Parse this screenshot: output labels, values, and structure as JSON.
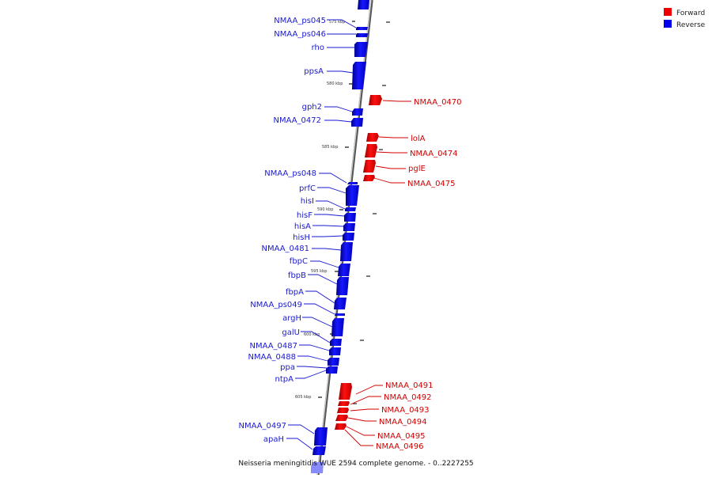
{
  "caption": "Neisseria meningitidis WUE 2594 complete genome. - 0..2227255",
  "legend": [
    {
      "label": "Forward",
      "color": "#ee0000"
    },
    {
      "label": "Reverse",
      "color": "#0000ee"
    }
  ],
  "colors": {
    "forward": "#ee0000",
    "reverse": "#0000ee",
    "forward_label": "#d00000",
    "reverse_label": "#1a1ad0",
    "axis": "#888888"
  },
  "ticks": [
    "575 kbp",
    "580 kbp",
    "585 kbp",
    "590 kbp",
    "595 kbp",
    "600 kbp",
    "605 kbp"
  ],
  "reverse_genes": [
    "NMAA_ps045",
    "NMAA_ps046",
    "rho",
    "ppsA",
    "gph2",
    "NMAA_0472",
    "NMAA_ps048",
    "prfC",
    "hisI",
    "hisF",
    "hisA",
    "hisH",
    "NMAA_0481",
    "fbpC",
    "fbpB",
    "fbpA",
    "NMAA_ps049",
    "argH",
    "galU",
    "NMAA_0487",
    "NMAA_0488",
    "ppa",
    "ntpA",
    "NMAA_0497",
    "apaH"
  ],
  "forward_genes": [
    "NMAA_0470",
    "lolA",
    "NMAA_0474",
    "pglE",
    "NMAA_0475",
    "NMAA_0491",
    "NMAA_0492",
    "NMAA_0493",
    "NMAA_0494",
    "NMAA_0495",
    "NMAA_0496"
  ]
}
